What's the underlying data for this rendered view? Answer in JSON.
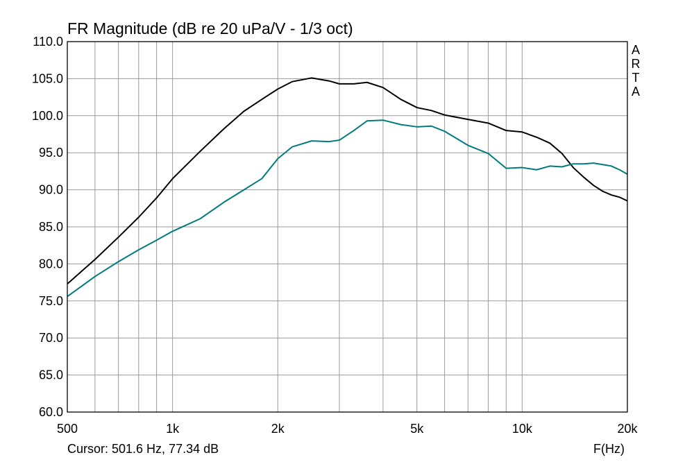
{
  "chart_data": {
    "type": "line",
    "title": "FR Magnitude (dB re 20 uPa/V - 1/3 oct)",
    "xlabel": "F(Hz)",
    "ylabel": "",
    "x_scale": "log",
    "xlim": [
      500,
      20000
    ],
    "ylim": [
      60,
      110
    ],
    "grid": true,
    "x_ticks": [
      500,
      1000,
      2000,
      5000,
      10000,
      20000
    ],
    "x_tick_labels": [
      "500",
      "1k",
      "2k",
      "5k",
      "10k",
      "20k"
    ],
    "y_ticks": [
      60,
      65,
      70,
      75,
      80,
      85,
      90,
      95,
      100,
      105,
      110
    ],
    "y_tick_labels": [
      "60.0",
      "65.0",
      "70.0",
      "75.0",
      "80.0",
      "85.0",
      "90.0",
      "95.0",
      "100.0",
      "105.0",
      "110.0"
    ],
    "series": [
      {
        "color": "#000000",
        "points": [
          [
            500,
            77.3
          ],
          [
            600,
            80.6
          ],
          [
            700,
            83.6
          ],
          [
            800,
            86.3
          ],
          [
            900,
            88.9
          ],
          [
            1000,
            91.5
          ],
          [
            1200,
            95.2
          ],
          [
            1400,
            98.2
          ],
          [
            1600,
            100.6
          ],
          [
            1800,
            102.2
          ],
          [
            2000,
            103.6
          ],
          [
            2200,
            104.6
          ],
          [
            2500,
            105.1
          ],
          [
            2800,
            104.7
          ],
          [
            3000,
            104.3
          ],
          [
            3300,
            104.3
          ],
          [
            3600,
            104.5
          ],
          [
            4000,
            103.8
          ],
          [
            4500,
            102.2
          ],
          [
            5000,
            101.1
          ],
          [
            5500,
            100.7
          ],
          [
            6000,
            100.1
          ],
          [
            7000,
            99.5
          ],
          [
            8000,
            99.0
          ],
          [
            9000,
            98.0
          ],
          [
            10000,
            97.8
          ],
          [
            11000,
            97.1
          ],
          [
            12000,
            96.3
          ],
          [
            13000,
            94.9
          ],
          [
            14000,
            93.0
          ],
          [
            15000,
            91.7
          ],
          [
            16000,
            90.6
          ],
          [
            17000,
            89.8
          ],
          [
            18000,
            89.3
          ],
          [
            19000,
            89.0
          ],
          [
            20000,
            88.5
          ]
        ]
      },
      {
        "color": "#007b7b",
        "points": [
          [
            500,
            75.6
          ],
          [
            600,
            78.3
          ],
          [
            700,
            80.3
          ],
          [
            800,
            81.9
          ],
          [
            900,
            83.2
          ],
          [
            1000,
            84.4
          ],
          [
            1200,
            86.1
          ],
          [
            1400,
            88.3
          ],
          [
            1600,
            90.0
          ],
          [
            1800,
            91.5
          ],
          [
            2000,
            94.2
          ],
          [
            2200,
            95.8
          ],
          [
            2500,
            96.6
          ],
          [
            2800,
            96.5
          ],
          [
            3000,
            96.7
          ],
          [
            3300,
            98.0
          ],
          [
            3600,
            99.3
          ],
          [
            4000,
            99.4
          ],
          [
            4500,
            98.8
          ],
          [
            5000,
            98.5
          ],
          [
            5500,
            98.6
          ],
          [
            6000,
            97.9
          ],
          [
            7000,
            96.0
          ],
          [
            8000,
            94.9
          ],
          [
            9000,
            92.9
          ],
          [
            10000,
            93.0
          ],
          [
            11000,
            92.7
          ],
          [
            12000,
            93.2
          ],
          [
            13000,
            93.1
          ],
          [
            14000,
            93.5
          ],
          [
            15000,
            93.5
          ],
          [
            16000,
            93.6
          ],
          [
            17000,
            93.4
          ],
          [
            18000,
            93.2
          ],
          [
            19000,
            92.7
          ],
          [
            20000,
            92.1
          ]
        ]
      }
    ]
  },
  "cursor_text": "Cursor: 501.6 Hz, 77.34 dB",
  "watermark": [
    "A",
    "R",
    "T",
    "A"
  ]
}
